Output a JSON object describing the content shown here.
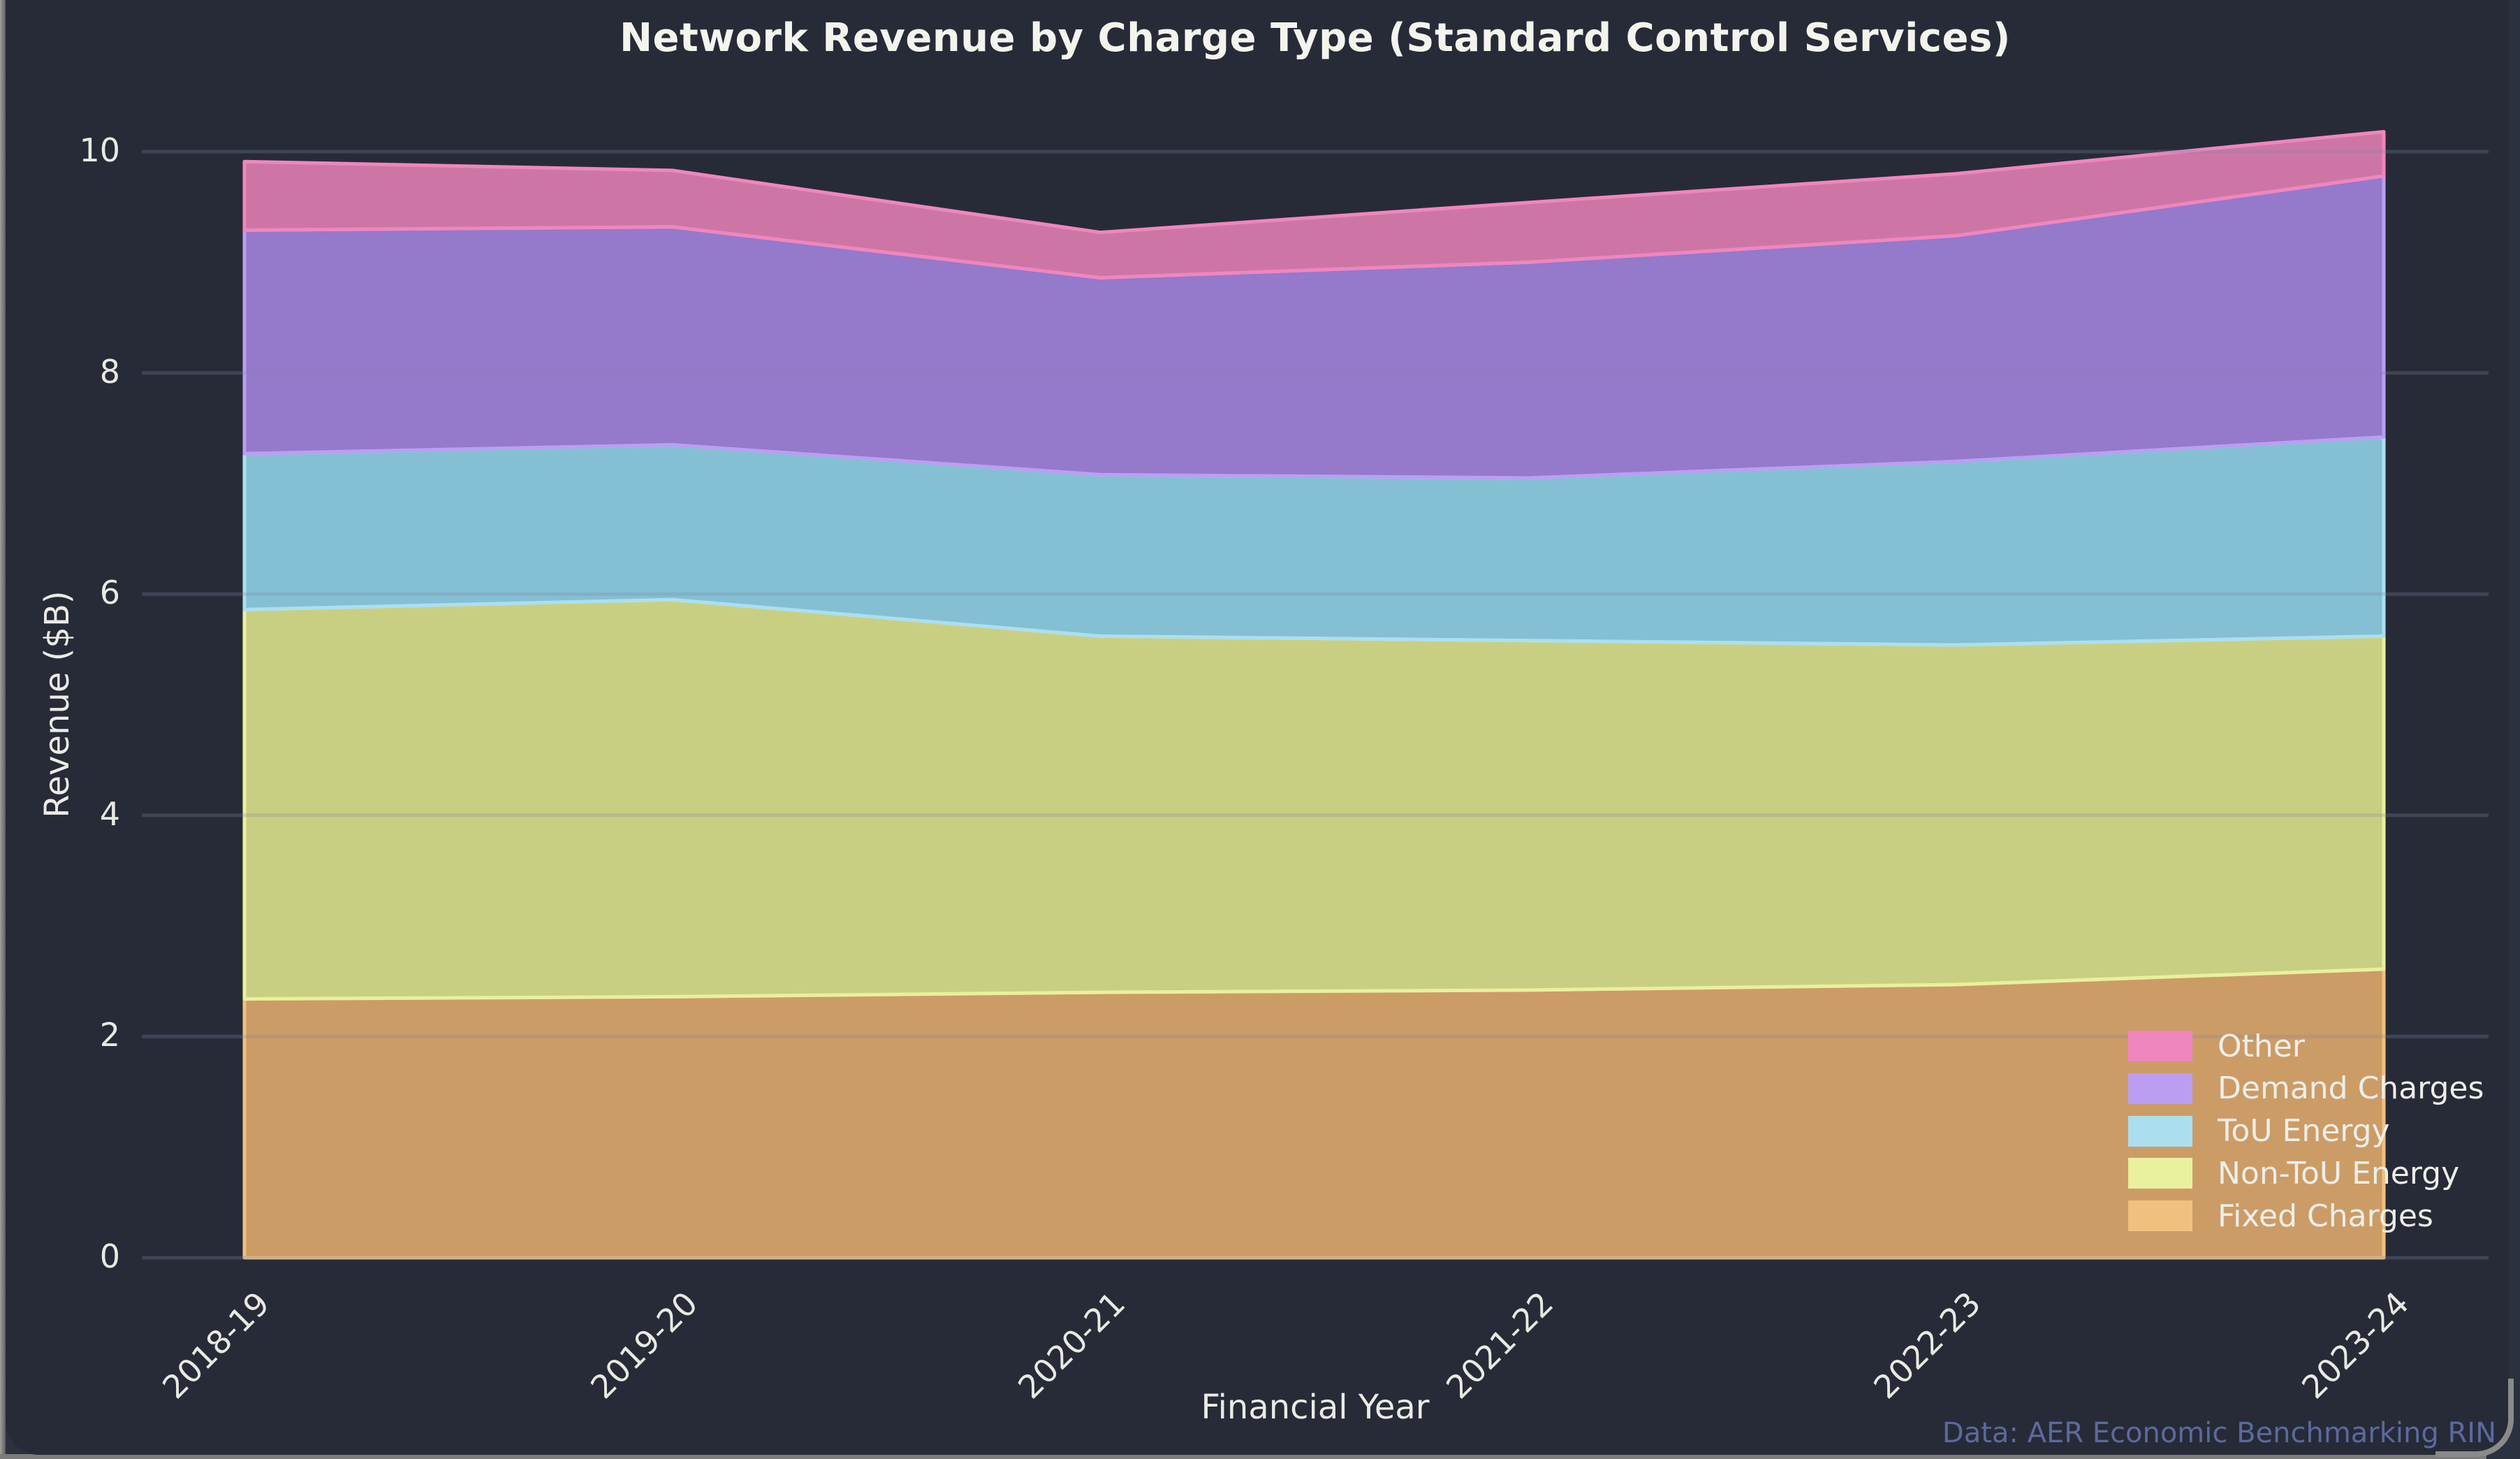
{
  "window": {
    "panel_bg": "#272b38",
    "behind_bg": "#2c3140",
    "frame_gray": "#8a8a8a"
  },
  "header": {
    "title": "Network Revenue by Charge Type (Standard Control Services)"
  },
  "footer": {
    "credit": "Data: AER Economic Benchmarking RIN"
  },
  "chart_data": {
    "type": "area",
    "stacked": true,
    "title": "Network Revenue by Charge Type (Standard Control Services)",
    "xlabel": "Financial Year",
    "ylabel": "Revenue ($B)",
    "categories": [
      "2018-19",
      "2019-20",
      "2020-21",
      "2021-22",
      "2022-23",
      "2023-24"
    ],
    "series": [
      {
        "name": "Fixed Charges",
        "values": [
          2.34,
          2.36,
          2.4,
          2.42,
          2.47,
          2.61
        ],
        "fill": "#cc9c67",
        "line": "#f0c17e"
      },
      {
        "name": "Non-ToU Energy",
        "values": [
          3.52,
          3.59,
          3.22,
          3.16,
          3.07,
          3.01
        ],
        "fill": "#c9cf82",
        "line": "#e9f09e"
      },
      {
        "name": "ToU Energy",
        "values": [
          1.41,
          1.4,
          1.46,
          1.47,
          1.66,
          1.8
        ],
        "fill": "#85bfd4",
        "line": "#abdff0"
      },
      {
        "name": "Demand Charges",
        "values": [
          2.02,
          1.97,
          1.78,
          1.95,
          2.04,
          2.36
        ],
        "fill": "#9579cb",
        "line": "#bb9ef2"
      },
      {
        "name": "Other",
        "values": [
          0.62,
          0.51,
          0.41,
          0.54,
          0.56,
          0.4
        ],
        "fill": "#cd76a6",
        "line": "#f086be"
      }
    ],
    "stack_totals": [
      9.91,
      9.83,
      9.27,
      9.54,
      9.8,
      10.18
    ],
    "yticks": [
      "0",
      "2",
      "4",
      "6",
      "8",
      "10"
    ],
    "ylim": [
      0,
      10
    ],
    "grid": true,
    "gridline_color": "rgba(125,135,165,0.27)",
    "legend_position": "lower right",
    "legend_order_top_to_bottom": [
      "Other",
      "Demand Charges",
      "ToU Energy",
      "Non-ToU Energy",
      "Fixed Charges"
    ]
  }
}
